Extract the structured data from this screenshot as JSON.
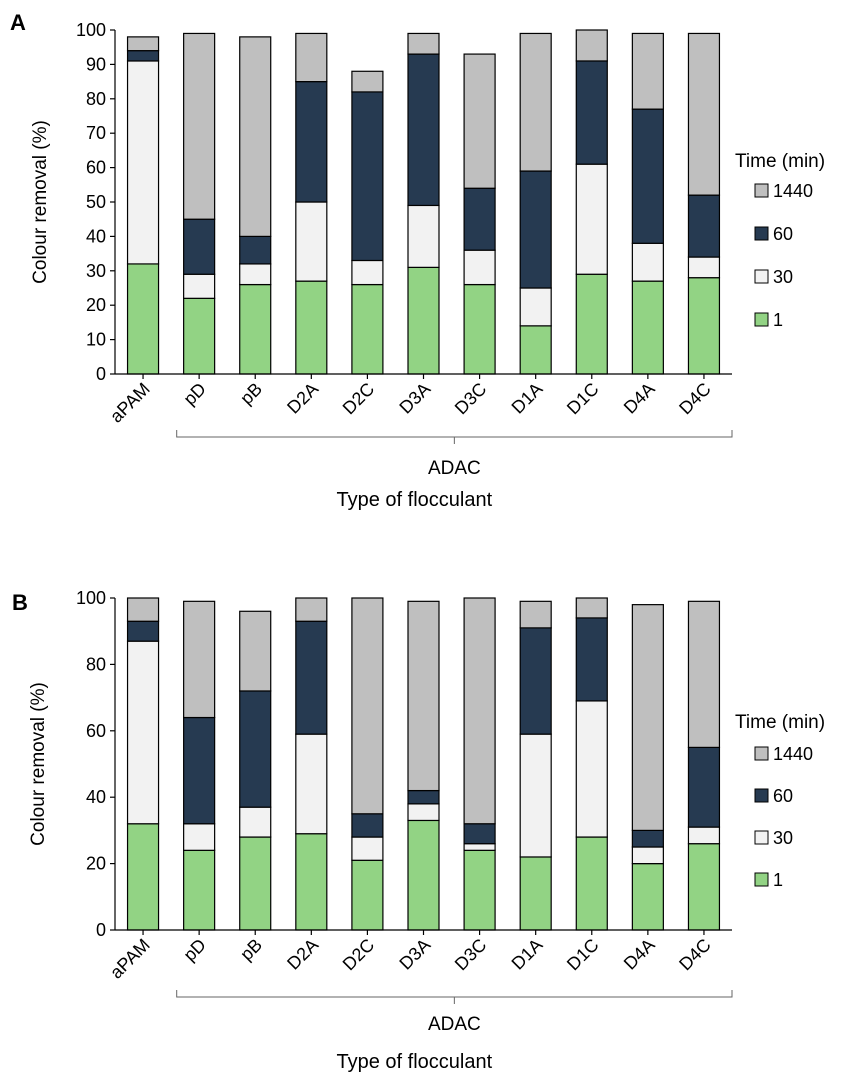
{
  "chart_data": [
    {
      "type": "bar",
      "stacked": true,
      "panel_label": "A",
      "categories": [
        "aPAM",
        "pD",
        "pB",
        "D2A",
        "D2C",
        "D3A",
        "D3C",
        "D1A",
        "D1C",
        "D4A",
        "D4C"
      ],
      "bracket_label": "ADAC",
      "xlabel": "Type of flocculant",
      "ylabel": "Colour removal (%)",
      "ylim": [
        0,
        100
      ],
      "ytick_step": 10,
      "legend_title": "Time (min)",
      "legend_placement": "right",
      "grid": false,
      "series": [
        {
          "name": "1",
          "color": "#92d384",
          "cumulative": [
            32,
            22,
            26,
            27,
            26,
            31,
            26,
            14,
            29,
            27,
            28
          ]
        },
        {
          "name": "30",
          "color": "#f2f2f2",
          "cumulative": [
            91,
            29,
            32,
            50,
            33,
            49,
            36,
            25,
            61,
            38,
            34
          ]
        },
        {
          "name": "60",
          "color": "#263a51",
          "cumulative": [
            94,
            45,
            40,
            85,
            82,
            93,
            54,
            59,
            91,
            77,
            52
          ]
        },
        {
          "name": "1440",
          "color": "#bfbfbf",
          "cumulative": [
            98,
            99,
            98,
            99,
            88,
            99,
            93,
            99,
            100,
            99,
            99
          ]
        }
      ]
    },
    {
      "type": "bar",
      "stacked": true,
      "panel_label": "B",
      "categories": [
        "aPAM",
        "pD",
        "pB",
        "D2A",
        "D2C",
        "D3A",
        "D3C",
        "D1A",
        "D1C",
        "D4A",
        "D4C"
      ],
      "bracket_label": "ADAC",
      "xlabel": "Type of flocculant",
      "ylabel": "Colour removal (%)",
      "ylim": [
        0,
        100
      ],
      "ytick_step": 20,
      "legend_title": "Time (min)",
      "legend_placement": "right",
      "grid": false,
      "series": [
        {
          "name": "1",
          "color": "#92d384",
          "cumulative": [
            32,
            24,
            28,
            29,
            21,
            33,
            24,
            22,
            28,
            20,
            26
          ]
        },
        {
          "name": "30",
          "color": "#f2f2f2",
          "cumulative": [
            87,
            32,
            37,
            59,
            28,
            38,
            26,
            59,
            69,
            25,
            31
          ]
        },
        {
          "name": "60",
          "color": "#263a51",
          "cumulative": [
            93,
            64,
            72,
            93,
            35,
            42,
            32,
            91,
            94,
            30,
            55
          ]
        },
        {
          "name": "1440",
          "color": "#bfbfbf",
          "cumulative": [
            100,
            99,
            96,
            100,
            100,
            99,
            100,
            99,
            100,
            98,
            99
          ]
        }
      ]
    }
  ]
}
